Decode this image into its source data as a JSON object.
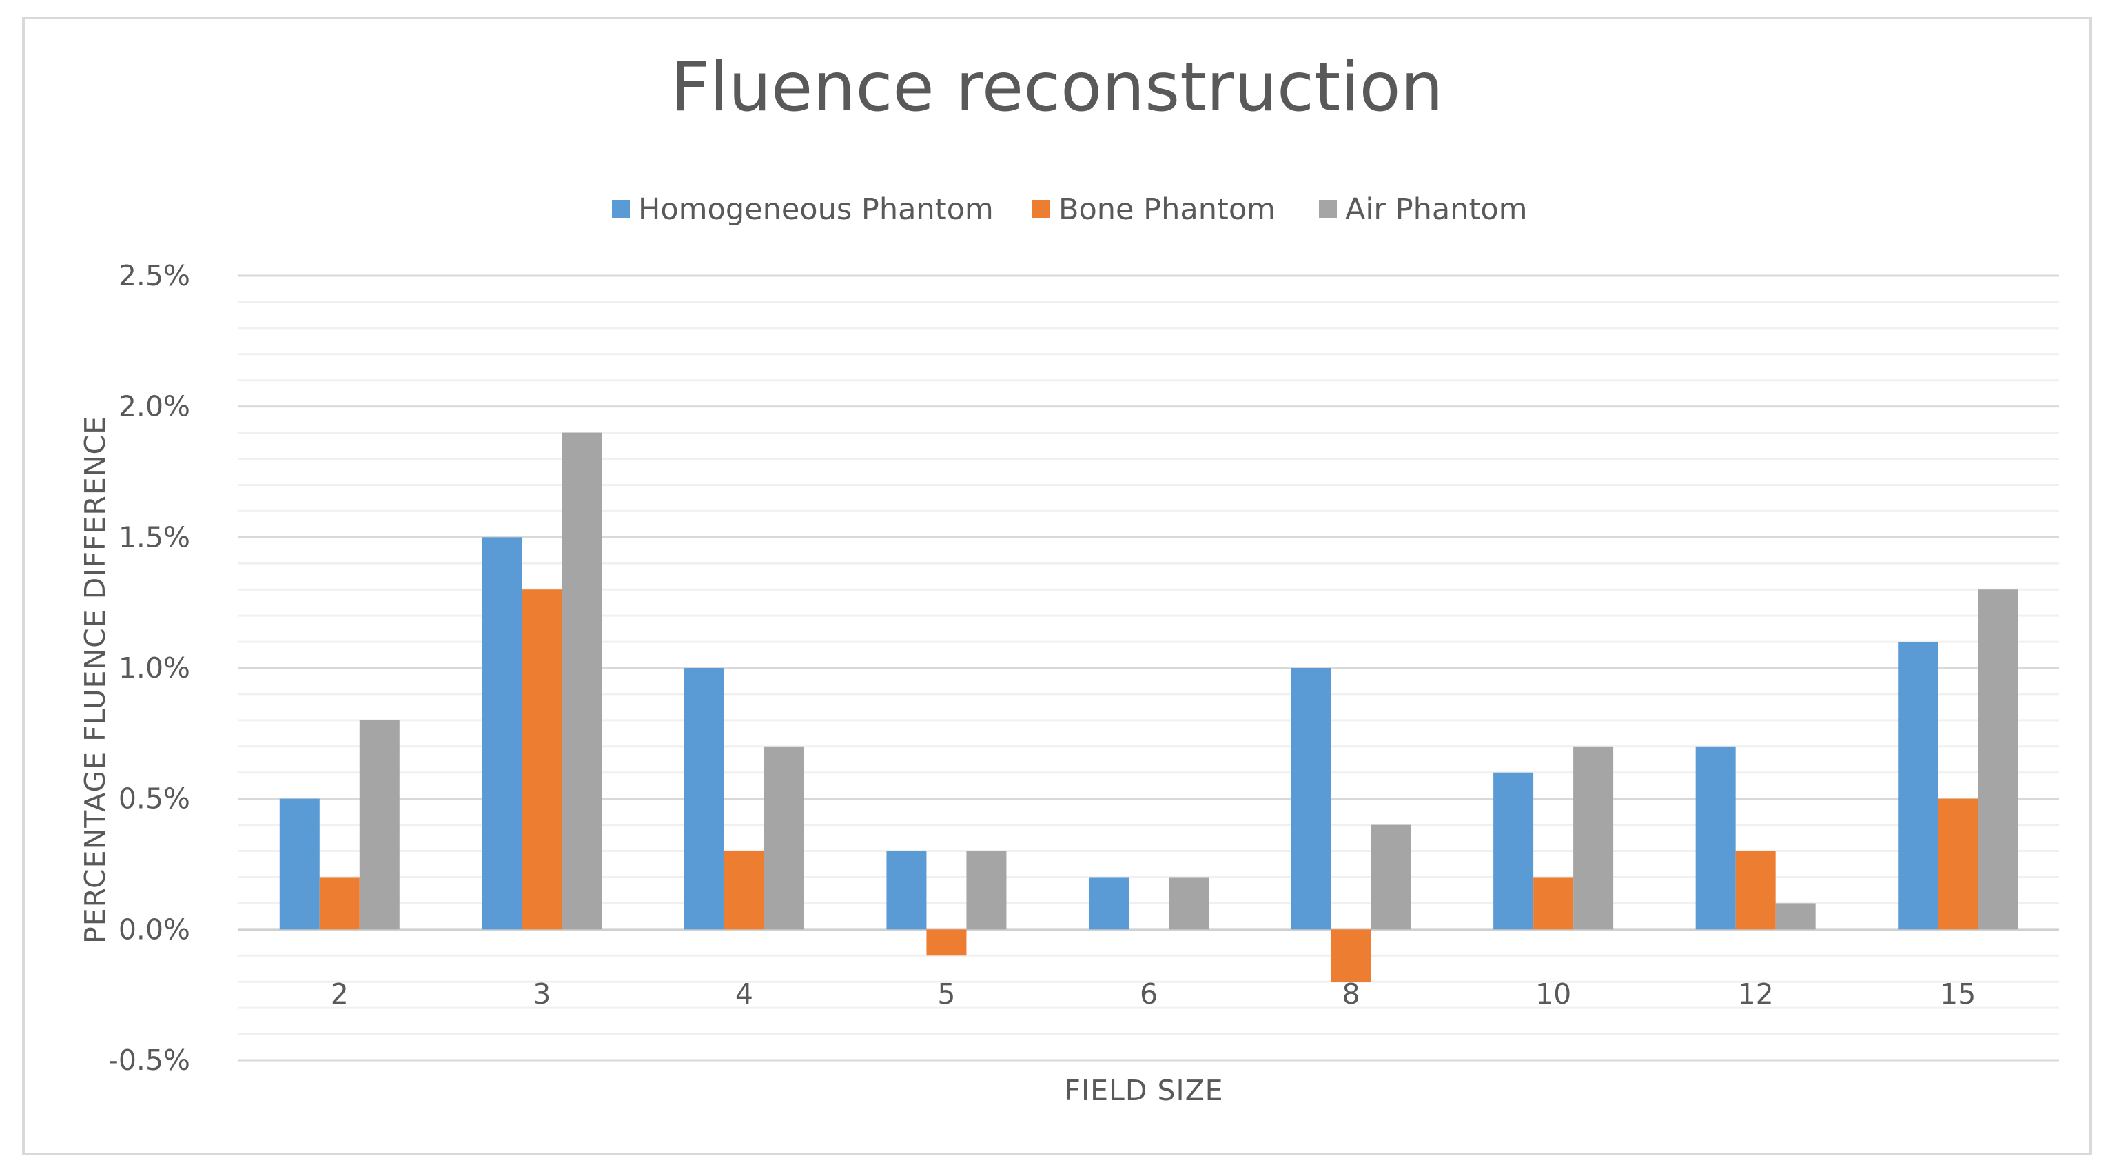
{
  "chart_data": {
    "type": "bar",
    "title": "Fluence reconstruction",
    "xlabel": "FIELD SIZE",
    "ylabel": "PERCENTAGE FLUENCE DIFFERENCE",
    "categories": [
      "2",
      "3",
      "4",
      "5",
      "6",
      "8",
      "10",
      "12",
      "15"
    ],
    "series": [
      {
        "name": "Homogeneous Phantom",
        "color": "#5b9bd5",
        "values": [
          0.5,
          1.5,
          1.0,
          0.3,
          0.2,
          1.0,
          0.6,
          0.7,
          1.1
        ]
      },
      {
        "name": "Bone Phantom",
        "color": "#ed7d31",
        "values": [
          0.2,
          1.3,
          0.3,
          -0.1,
          0.0,
          -0.2,
          0.2,
          0.3,
          0.5
        ]
      },
      {
        "name": "Air Phantom",
        "color": "#a5a5a5",
        "values": [
          0.8,
          1.9,
          0.7,
          0.3,
          0.2,
          0.4,
          0.7,
          0.1,
          1.3
        ]
      }
    ],
    "ylim": [
      -0.5,
      2.5
    ],
    "yticks": [
      "-0.5%",
      "0.0%",
      "0.5%",
      "1.0%",
      "1.5%",
      "2.0%",
      "2.5%"
    ],
    "ytick_values": [
      -0.5,
      0.0,
      0.5,
      1.0,
      1.5,
      2.0,
      2.5
    ],
    "minor_grid_step": 0.1,
    "grid": true,
    "legend": "top-center"
  }
}
